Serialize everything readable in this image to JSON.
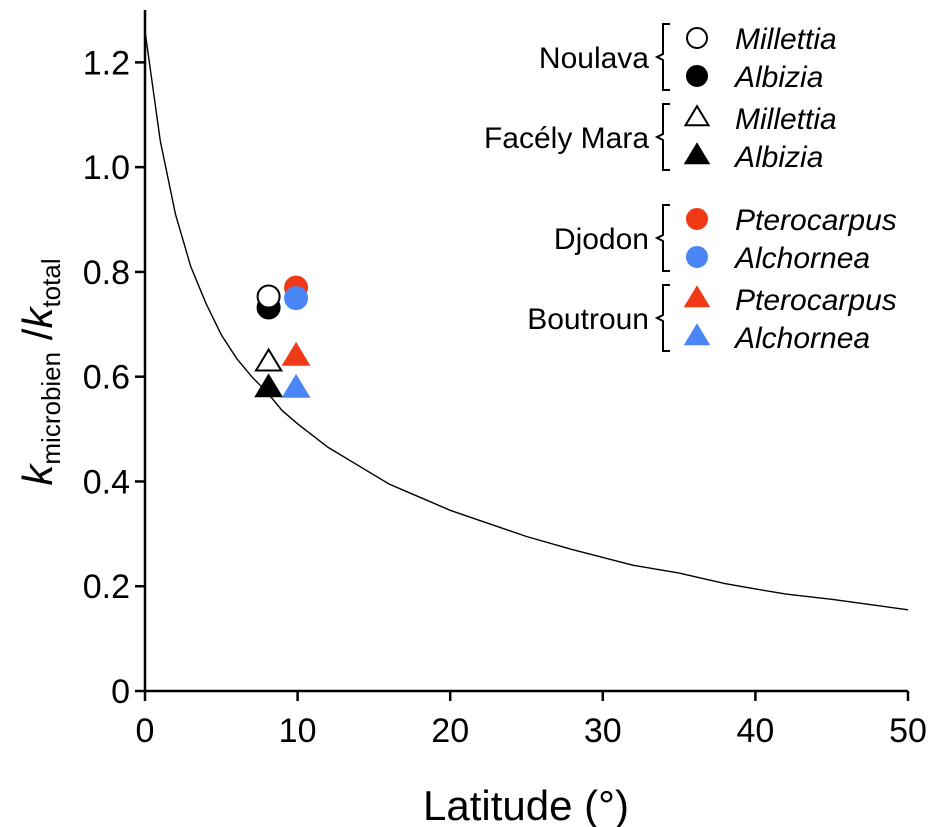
{
  "chart_data": {
    "type": "scatter",
    "xlabel": "Latitude (°)",
    "ylabel": {
      "k1": "k",
      "sub1": "microbien",
      "sep": " /",
      "k2": "k",
      "sub2": "total"
    },
    "xlim": [
      0,
      50
    ],
    "ylim": [
      0,
      1.3
    ],
    "xticks": [
      0,
      10,
      20,
      30,
      40,
      50
    ],
    "xtick_labels": [
      "0",
      "10",
      "20",
      "30",
      "40",
      "50"
    ],
    "yticks": [
      0,
      0.2,
      0.4,
      0.6,
      0.8,
      1.0,
      1.2
    ],
    "ytick_labels": [
      "0",
      "0.2",
      "0.4",
      "0.6",
      "0.8",
      "1.0",
      "1.2"
    ],
    "grid": false,
    "legend_position": "top-right",
    "colors": {
      "black": "#000000",
      "red": "#f03a17",
      "blue": "#4a86f5",
      "white": "#ffffff"
    },
    "fit_curve": {
      "x": [
        0,
        1,
        2,
        3,
        4,
        5,
        6,
        7,
        8,
        9,
        10,
        12,
        14,
        16,
        18,
        20,
        22,
        25,
        28,
        30,
        32,
        35,
        38,
        40,
        42,
        45,
        48,
        50
      ],
      "y": [
        1.26,
        1.05,
        0.91,
        0.81,
        0.74,
        0.68,
        0.635,
        0.6,
        0.57,
        0.535,
        0.51,
        0.465,
        0.43,
        0.395,
        0.37,
        0.345,
        0.325,
        0.295,
        0.27,
        0.255,
        0.24,
        0.225,
        0.205,
        0.195,
        0.185,
        0.175,
        0.163,
        0.155
      ]
    },
    "groups": [
      {
        "site": "Noulava",
        "series": [
          {
            "name": "Millettia",
            "marker": "circle",
            "fill": "#ffffff",
            "stroke": "#000000",
            "x": 8.1,
            "y": 0.753
          },
          {
            "name": "Albizia",
            "marker": "circle",
            "fill": "#000000",
            "stroke": "#000000",
            "x": 8.1,
            "y": 0.732
          }
        ]
      },
      {
        "site": "Facély Mara",
        "series": [
          {
            "name": "Millettia",
            "marker": "triangle",
            "fill": "#ffffff",
            "stroke": "#000000",
            "x": 8.1,
            "y": 0.627
          },
          {
            "name": "Albizia",
            "marker": "triangle",
            "fill": "#000000",
            "stroke": "#000000",
            "x": 8.1,
            "y": 0.578
          }
        ]
      },
      {
        "site": "Djodon",
        "series": [
          {
            "name": "Pterocarpus",
            "marker": "circle",
            "fill": "#f03a17",
            "stroke": "#f03a17",
            "x": 9.9,
            "y": 0.77
          },
          {
            "name": "Alchornea",
            "marker": "circle",
            "fill": "#4a86f5",
            "stroke": "#4a86f5",
            "x": 9.9,
            "y": 0.75
          }
        ]
      },
      {
        "site": "Boutroun",
        "series": [
          {
            "name": "Pterocarpus",
            "marker": "triangle",
            "fill": "#f03a17",
            "stroke": "#f03a17",
            "x": 9.9,
            "y": 0.638
          },
          {
            "name": "Alchornea",
            "marker": "triangle",
            "fill": "#4a86f5",
            "stroke": "#4a86f5",
            "x": 9.9,
            "y": 0.577
          }
        ]
      }
    ]
  }
}
